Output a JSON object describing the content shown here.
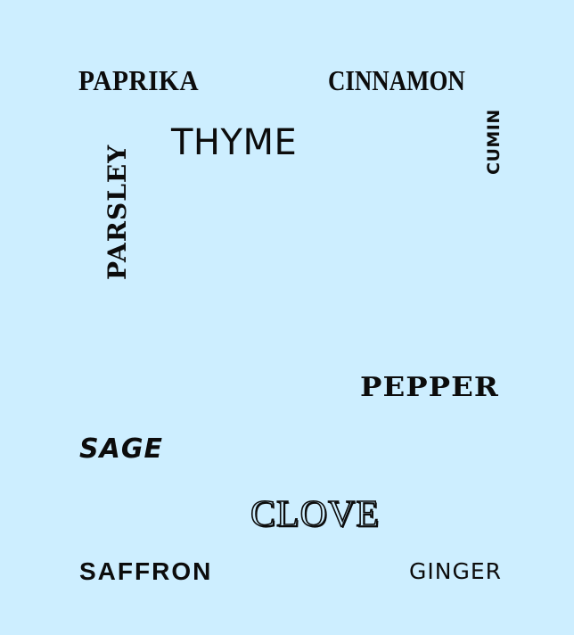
{
  "background_color": "#cdeeff",
  "text_color": "#0c0c0c",
  "words": {
    "paprika": "PAPRIKA",
    "cinnamon": "CINNAMON",
    "thyme": "THYME",
    "parsley": "PARSLEY",
    "cumin": "CUMIN",
    "pepper": "PEPPER",
    "sage": "SAGE",
    "clove": "CLOVE",
    "saffron": "SAFFRON",
    "ginger": "GINGER"
  }
}
